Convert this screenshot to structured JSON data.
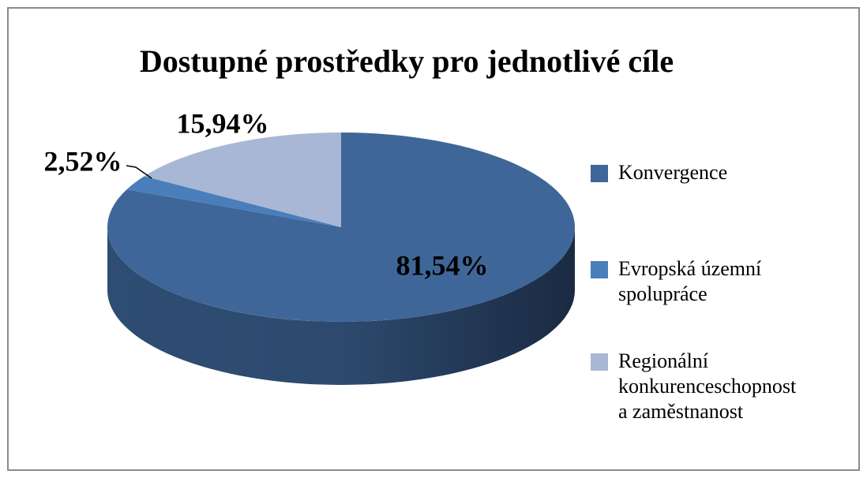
{
  "chart_data": {
    "type": "pie",
    "title": "Dostupné prostředky pro jednotlivé cíle",
    "categories": [
      "Konvergence",
      "Evropská územní spolupráce",
      "Regionální konkurenceschopnost a zaměstnanost"
    ],
    "values": [
      81.54,
      2.52,
      15.94
    ],
    "value_labels": [
      "81,54%",
      "2,52%",
      "15,94%"
    ],
    "colors": [
      "#3f6698",
      "#4a7ebb",
      "#a8b7d5"
    ],
    "legend": "right"
  }
}
